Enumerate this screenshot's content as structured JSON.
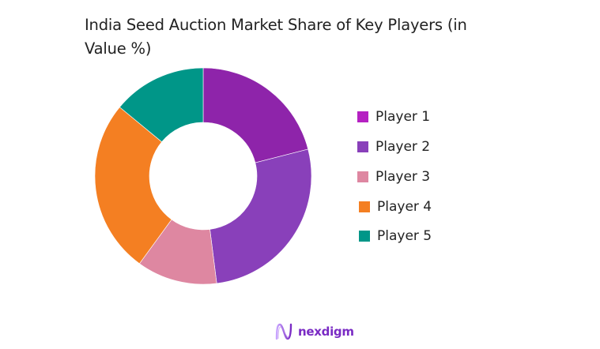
{
  "title": "India Seed Auction Market Share of Key Players (in Value %)",
  "title_lines": [
    "India Seed Auction Market Share of Key Players (in",
    "Value %)"
  ],
  "logo": {
    "text": "nexdigm",
    "icon": "nexdigm-logo-icon"
  },
  "chart_data": {
    "type": "pie",
    "variant": "donut",
    "title": "India Seed Auction Market Share of Key Players (in Value %)",
    "categories": [
      "Player 1",
      "Player 2",
      "Player 3",
      "Player 4",
      "Player 5"
    ],
    "values": [
      21,
      27,
      12,
      26,
      14
    ],
    "unit": "%",
    "colors": [
      "#8E24AA",
      "#8940BA",
      "#DE87A1",
      "#F47F22",
      "#009688"
    ],
    "legend_position": "right",
    "start_angle_deg": 0,
    "direction": "clockwise",
    "data_labels": false
  },
  "legend": {
    "items": [
      {
        "label": "Player 1",
        "color": "#B521C2"
      },
      {
        "label": "Player 2",
        "color": "#8940BA"
      },
      {
        "label": "Player 3",
        "color": "#DE87A1"
      },
      {
        "label": "Player 4",
        "color": "#F47F22"
      },
      {
        "label": "Player 5",
        "color": "#009688"
      }
    ]
  }
}
